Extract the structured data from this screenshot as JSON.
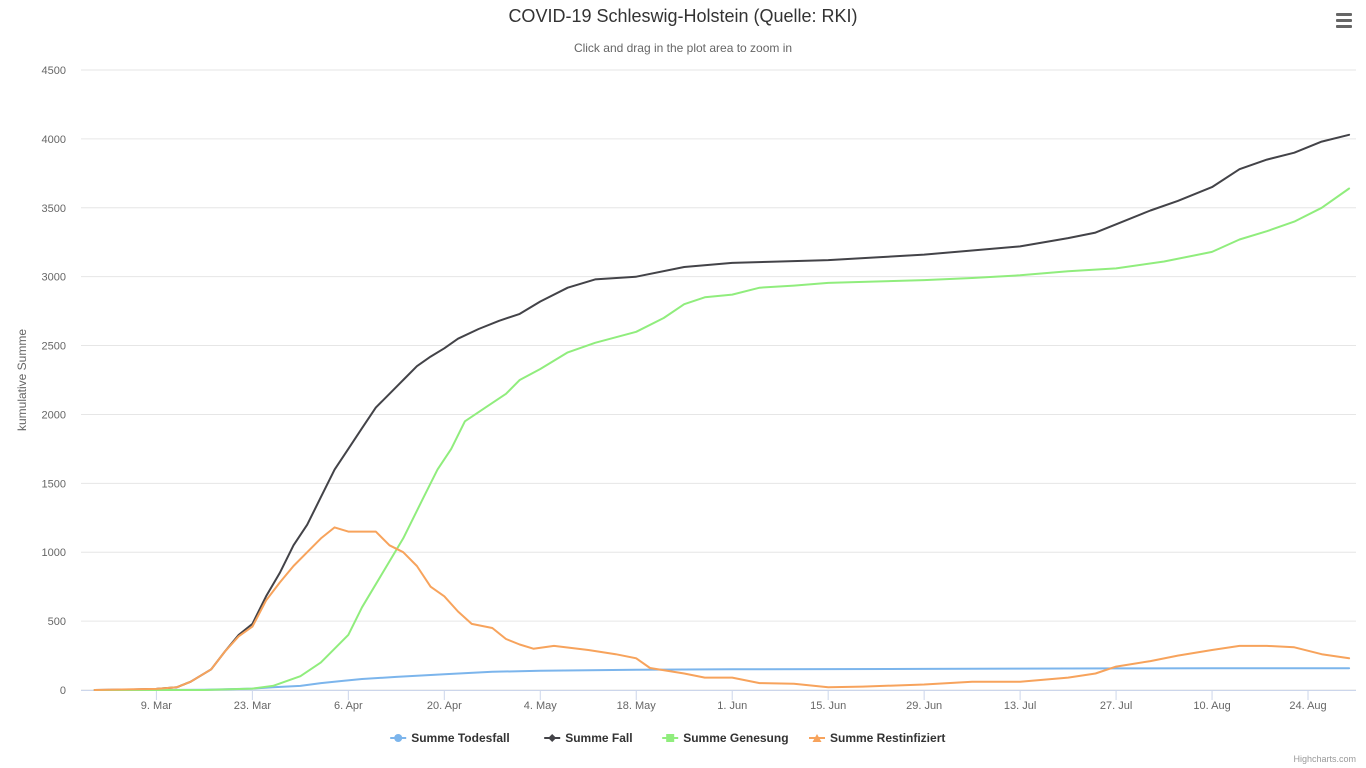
{
  "header": {
    "title": "COVID-19 Schleswig-Holstein (Quelle: RKI)",
    "subtitle": "Click and drag in the plot area to zoom in",
    "menu_icon": "hamburger-menu-icon"
  },
  "credits": "Highcharts.com",
  "chart_data": {
    "type": "line",
    "title": "COVID-19 Schleswig-Holstein (Quelle: RKI)",
    "subtitle": "Click and drag in the plot area to zoom in",
    "xlabel": "",
    "ylabel": "kumulative Summe",
    "ylim": [
      0,
      4500
    ],
    "yticks": [
      0,
      500,
      1000,
      1500,
      2000,
      2500,
      3000,
      3500,
      4000,
      4500
    ],
    "xlim": [
      "2020-02-27",
      "2020-08-31"
    ],
    "xticks": [
      "9. Mar",
      "23. Mar",
      "6. Apr",
      "20. Apr",
      "4. May",
      "18. May",
      "1. Jun",
      "15. Jun",
      "29. Jun",
      "13. Jul",
      "27. Jul",
      "10. Aug",
      "24. Aug"
    ],
    "xtick_dates": [
      "2020-03-09",
      "2020-03-23",
      "2020-04-06",
      "2020-04-20",
      "2020-05-04",
      "2020-05-18",
      "2020-06-01",
      "2020-06-15",
      "2020-06-29",
      "2020-07-13",
      "2020-07-27",
      "2020-08-10",
      "2020-08-24"
    ],
    "grid": "horizontal",
    "legend_position": "bottom-center",
    "series": [
      {
        "name": "Summe Todesfall",
        "color": "#7cb5ec",
        "marker": "circle",
        "points": [
          [
            "2020-02-29",
            0
          ],
          [
            "2020-03-09",
            0
          ],
          [
            "2020-03-16",
            2
          ],
          [
            "2020-03-23",
            10
          ],
          [
            "2020-03-26",
            20
          ],
          [
            "2020-03-30",
            30
          ],
          [
            "2020-04-02",
            50
          ],
          [
            "2020-04-05",
            65
          ],
          [
            "2020-04-08",
            80
          ],
          [
            "2020-04-13",
            95
          ],
          [
            "2020-04-20",
            115
          ],
          [
            "2020-04-27",
            132
          ],
          [
            "2020-05-04",
            140
          ],
          [
            "2020-05-11",
            143
          ],
          [
            "2020-05-18",
            147
          ],
          [
            "2020-06-01",
            150
          ],
          [
            "2020-06-15",
            152
          ],
          [
            "2020-06-29",
            153
          ],
          [
            "2020-07-13",
            155
          ],
          [
            "2020-07-27",
            157
          ],
          [
            "2020-08-10",
            158
          ],
          [
            "2020-08-30",
            158
          ]
        ]
      },
      {
        "name": "Summe Fall",
        "color": "#434348",
        "marker": "diamond",
        "points": [
          [
            "2020-02-29",
            0
          ],
          [
            "2020-03-05",
            3
          ],
          [
            "2020-03-09",
            8
          ],
          [
            "2020-03-12",
            20
          ],
          [
            "2020-03-14",
            60
          ],
          [
            "2020-03-17",
            150
          ],
          [
            "2020-03-19",
            280
          ],
          [
            "2020-03-21",
            400
          ],
          [
            "2020-03-23",
            480
          ],
          [
            "2020-03-25",
            680
          ],
          [
            "2020-03-27",
            850
          ],
          [
            "2020-03-29",
            1050
          ],
          [
            "2020-03-31",
            1200
          ],
          [
            "2020-04-02",
            1400
          ],
          [
            "2020-04-04",
            1600
          ],
          [
            "2020-04-06",
            1750
          ],
          [
            "2020-04-08",
            1900
          ],
          [
            "2020-04-10",
            2050
          ],
          [
            "2020-04-12",
            2150
          ],
          [
            "2020-04-14",
            2250
          ],
          [
            "2020-04-16",
            2350
          ],
          [
            "2020-04-18",
            2420
          ],
          [
            "2020-04-20",
            2480
          ],
          [
            "2020-04-22",
            2550
          ],
          [
            "2020-04-25",
            2620
          ],
          [
            "2020-04-28",
            2680
          ],
          [
            "2020-05-01",
            2730
          ],
          [
            "2020-05-04",
            2820
          ],
          [
            "2020-05-08",
            2920
          ],
          [
            "2020-05-12",
            2980
          ],
          [
            "2020-05-18",
            3000
          ],
          [
            "2020-05-25",
            3070
          ],
          [
            "2020-06-01",
            3100
          ],
          [
            "2020-06-08",
            3110
          ],
          [
            "2020-06-15",
            3120
          ],
          [
            "2020-06-22",
            3140
          ],
          [
            "2020-06-29",
            3160
          ],
          [
            "2020-07-06",
            3190
          ],
          [
            "2020-07-13",
            3220
          ],
          [
            "2020-07-20",
            3280
          ],
          [
            "2020-07-24",
            3320
          ],
          [
            "2020-07-27",
            3380
          ],
          [
            "2020-08-01",
            3480
          ],
          [
            "2020-08-05",
            3550
          ],
          [
            "2020-08-10",
            3650
          ],
          [
            "2020-08-14",
            3780
          ],
          [
            "2020-08-18",
            3850
          ],
          [
            "2020-08-22",
            3900
          ],
          [
            "2020-08-26",
            3980
          ],
          [
            "2020-08-30",
            4030
          ]
        ]
      },
      {
        "name": "Summe Genesung",
        "color": "#90ed7d",
        "marker": "square",
        "points": [
          [
            "2020-02-29",
            0
          ],
          [
            "2020-03-16",
            0
          ],
          [
            "2020-03-23",
            10
          ],
          [
            "2020-03-26",
            30
          ],
          [
            "2020-03-30",
            100
          ],
          [
            "2020-04-02",
            200
          ],
          [
            "2020-04-04",
            300
          ],
          [
            "2020-04-06",
            400
          ],
          [
            "2020-04-08",
            600
          ],
          [
            "2020-04-11",
            850
          ],
          [
            "2020-04-14",
            1100
          ],
          [
            "2020-04-17",
            1400
          ],
          [
            "2020-04-19",
            1600
          ],
          [
            "2020-04-21",
            1750
          ],
          [
            "2020-04-23",
            1950
          ],
          [
            "2020-04-26",
            2050
          ],
          [
            "2020-04-29",
            2150
          ],
          [
            "2020-05-01",
            2250
          ],
          [
            "2020-05-04",
            2330
          ],
          [
            "2020-05-08",
            2450
          ],
          [
            "2020-05-12",
            2520
          ],
          [
            "2020-05-18",
            2600
          ],
          [
            "2020-05-22",
            2700
          ],
          [
            "2020-05-25",
            2800
          ],
          [
            "2020-05-28",
            2850
          ],
          [
            "2020-06-01",
            2870
          ],
          [
            "2020-06-05",
            2920
          ],
          [
            "2020-06-10",
            2935
          ],
          [
            "2020-06-15",
            2955
          ],
          [
            "2020-06-22",
            2965
          ],
          [
            "2020-06-29",
            2975
          ],
          [
            "2020-07-06",
            2990
          ],
          [
            "2020-07-13",
            3010
          ],
          [
            "2020-07-20",
            3040
          ],
          [
            "2020-07-27",
            3060
          ],
          [
            "2020-08-03",
            3110
          ],
          [
            "2020-08-10",
            3180
          ],
          [
            "2020-08-14",
            3270
          ],
          [
            "2020-08-18",
            3330
          ],
          [
            "2020-08-22",
            3400
          ],
          [
            "2020-08-26",
            3500
          ],
          [
            "2020-08-30",
            3640
          ]
        ]
      },
      {
        "name": "Summe Restinfiziert",
        "color": "#f7a35c",
        "marker": "triangle",
        "points": [
          [
            "2020-02-29",
            0
          ],
          [
            "2020-03-09",
            8
          ],
          [
            "2020-03-12",
            20
          ],
          [
            "2020-03-14",
            60
          ],
          [
            "2020-03-17",
            150
          ],
          [
            "2020-03-19",
            280
          ],
          [
            "2020-03-21",
            390
          ],
          [
            "2020-03-23",
            460
          ],
          [
            "2020-03-25",
            650
          ],
          [
            "2020-03-27",
            780
          ],
          [
            "2020-03-29",
            900
          ],
          [
            "2020-03-31",
            1000
          ],
          [
            "2020-04-02",
            1100
          ],
          [
            "2020-04-04",
            1180
          ],
          [
            "2020-04-06",
            1150
          ],
          [
            "2020-04-08",
            1150
          ],
          [
            "2020-04-10",
            1150
          ],
          [
            "2020-04-12",
            1050
          ],
          [
            "2020-04-14",
            1000
          ],
          [
            "2020-04-16",
            900
          ],
          [
            "2020-04-18",
            750
          ],
          [
            "2020-04-20",
            680
          ],
          [
            "2020-04-22",
            570
          ],
          [
            "2020-04-24",
            480
          ],
          [
            "2020-04-27",
            450
          ],
          [
            "2020-04-29",
            370
          ],
          [
            "2020-05-01",
            330
          ],
          [
            "2020-05-03",
            300
          ],
          [
            "2020-05-06",
            320
          ],
          [
            "2020-05-11",
            290
          ],
          [
            "2020-05-15",
            260
          ],
          [
            "2020-05-18",
            230
          ],
          [
            "2020-05-20",
            160
          ],
          [
            "2020-05-25",
            120
          ],
          [
            "2020-05-28",
            90
          ],
          [
            "2020-06-01",
            90
          ],
          [
            "2020-06-05",
            50
          ],
          [
            "2020-06-10",
            45
          ],
          [
            "2020-06-15",
            20
          ],
          [
            "2020-06-20",
            25
          ],
          [
            "2020-06-29",
            40
          ],
          [
            "2020-07-06",
            60
          ],
          [
            "2020-07-13",
            60
          ],
          [
            "2020-07-20",
            90
          ],
          [
            "2020-07-24",
            120
          ],
          [
            "2020-07-27",
            170
          ],
          [
            "2020-08-01",
            210
          ],
          [
            "2020-08-05",
            250
          ],
          [
            "2020-08-10",
            290
          ],
          [
            "2020-08-14",
            320
          ],
          [
            "2020-08-18",
            320
          ],
          [
            "2020-08-22",
            310
          ],
          [
            "2020-08-26",
            260
          ],
          [
            "2020-08-30",
            230
          ]
        ]
      }
    ]
  }
}
